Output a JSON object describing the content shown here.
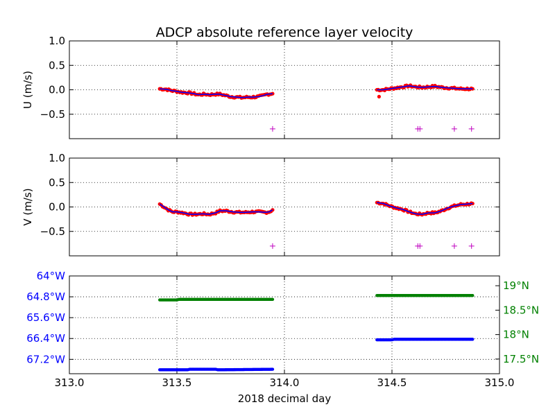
{
  "figure": {
    "title": "ADCP absolute reference layer velocity",
    "xlabel": "2018 decimal day"
  },
  "chart_data": [
    {
      "type": "scatter",
      "panel": "U",
      "ylabel": "U (m/s)",
      "xlim": [
        313.0,
        315.0
      ],
      "ylim": [
        -1.0,
        1.0
      ],
      "yticks": [
        "1.0",
        "0.5",
        "0.0",
        "−0.5"
      ],
      "ytick_values": [
        1.0,
        0.5,
        0.0,
        -0.5
      ],
      "grid": true,
      "segments": [
        {
          "x": [
            313.42,
            313.45,
            313.48,
            313.5,
            313.52,
            313.55,
            313.58,
            313.6,
            313.63,
            313.65,
            313.68,
            313.7,
            313.73,
            313.75,
            313.78,
            313.8,
            313.83,
            313.85,
            313.88,
            313.9,
            313.92,
            313.945
          ],
          "y": [
            0.02,
            0.01,
            -0.02,
            -0.03,
            -0.05,
            -0.06,
            -0.08,
            -0.1,
            -0.09,
            -0.1,
            -0.09,
            -0.09,
            -0.12,
            -0.14,
            -0.15,
            -0.16,
            -0.15,
            -0.15,
            -0.14,
            -0.12,
            -0.09,
            -0.08
          ]
        },
        {
          "x": [
            314.43,
            314.46,
            314.49,
            314.52,
            314.55,
            314.58,
            314.61,
            314.64,
            314.67,
            314.7,
            314.73,
            314.76,
            314.79,
            314.82,
            314.85,
            314.875
          ],
          "y": [
            0.0,
            0.0,
            0.02,
            0.04,
            0.06,
            0.08,
            0.06,
            0.05,
            0.06,
            0.07,
            0.05,
            0.04,
            0.03,
            0.02,
            0.02,
            0.02
          ]
        }
      ],
      "outliers": {
        "x": [
          314.44
        ],
        "y": [
          -0.14
        ]
      },
      "flags": {
        "x": [
          313.945,
          314.62,
          314.63,
          314.79,
          314.87
        ],
        "y": [
          -0.8,
          -0.8,
          -0.8,
          -0.8,
          -0.8
        ]
      }
    },
    {
      "type": "scatter",
      "panel": "V",
      "ylabel": "V (m/s)",
      "xlim": [
        313.0,
        315.0
      ],
      "ylim": [
        -1.0,
        1.0
      ],
      "yticks": [
        "1.0",
        "0.5",
        "0.0",
        "−0.5"
      ],
      "ytick_values": [
        1.0,
        0.5,
        0.0,
        -0.5
      ],
      "grid": true,
      "segments": [
        {
          "x": [
            313.42,
            313.44,
            313.46,
            313.48,
            313.5,
            313.53,
            313.56,
            313.59,
            313.62,
            313.65,
            313.68,
            313.7,
            313.73,
            313.76,
            313.79,
            313.82,
            313.85,
            313.88,
            313.91,
            313.93,
            313.945
          ],
          "y": [
            0.06,
            0.0,
            -0.06,
            -0.1,
            -0.1,
            -0.12,
            -0.15,
            -0.15,
            -0.14,
            -0.15,
            -0.12,
            -0.08,
            -0.08,
            -0.1,
            -0.11,
            -0.11,
            -0.1,
            -0.1,
            -0.11,
            -0.1,
            -0.06
          ]
        },
        {
          "x": [
            314.43,
            314.46,
            314.49,
            314.52,
            314.55,
            314.58,
            314.61,
            314.64,
            314.67,
            314.7,
            314.73,
            314.76,
            314.79,
            314.82,
            314.85,
            314.875
          ],
          "y": [
            0.09,
            0.07,
            0.02,
            -0.02,
            -0.05,
            -0.1,
            -0.14,
            -0.15,
            -0.12,
            -0.12,
            -0.08,
            -0.02,
            0.02,
            0.05,
            0.06,
            0.07
          ]
        }
      ],
      "flags": {
        "x": [
          313.945,
          314.62,
          314.63,
          314.79,
          314.87
        ],
        "y": [
          -0.8,
          -0.8,
          -0.8,
          -0.8,
          -0.8
        ]
      }
    },
    {
      "type": "scatter",
      "panel": "position",
      "xlim": [
        313.0,
        315.0
      ],
      "xticks": [
        "313.0",
        "313.5",
        "314.0",
        "314.5",
        "315.0"
      ],
      "xtick_values": [
        313.0,
        313.5,
        314.0,
        314.5,
        315.0
      ],
      "grid": true,
      "left_axis": {
        "quantity": "longitude",
        "color": "#0000ff",
        "lim": [
          -64.0,
          -67.75
        ],
        "ticks": [
          "64°W",
          "64.8°W",
          "65.6°W",
          "66.4°W",
          "67.2°W"
        ],
        "tick_values": [
          -64.0,
          -64.8,
          -65.6,
          -66.4,
          -67.2
        ]
      },
      "right_axis": {
        "quantity": "latitude",
        "color": "#008000",
        "lim": [
          17.2,
          19.2
        ],
        "ticks": [
          "19°N",
          "18.5°N",
          "18°N",
          "17.5°N"
        ],
        "tick_values": [
          19.0,
          18.5,
          18.0,
          17.5
        ]
      },
      "series": [
        {
          "axis": "left",
          "color": "#0000ff",
          "segments": [
            {
              "x": [
                313.42,
                313.55,
                313.56,
                313.68,
                313.69,
                313.945
              ],
              "y": [
                -67.6,
                -67.6,
                -67.58,
                -67.58,
                -67.6,
                -67.58
              ]
            },
            {
              "x": [
                314.43,
                314.5,
                314.51,
                314.875
              ],
              "y": [
                -66.45,
                -66.45,
                -66.43,
                -66.43
              ]
            }
          ]
        },
        {
          "axis": "right",
          "color": "#008000",
          "segments": [
            {
              "x": [
                313.42,
                313.5,
                313.51,
                313.945
              ],
              "y": [
                18.71,
                18.71,
                18.72,
                18.72
              ]
            },
            {
              "x": [
                314.43,
                314.875
              ],
              "y": [
                18.8,
                18.8
              ]
            }
          ]
        }
      ]
    }
  ]
}
